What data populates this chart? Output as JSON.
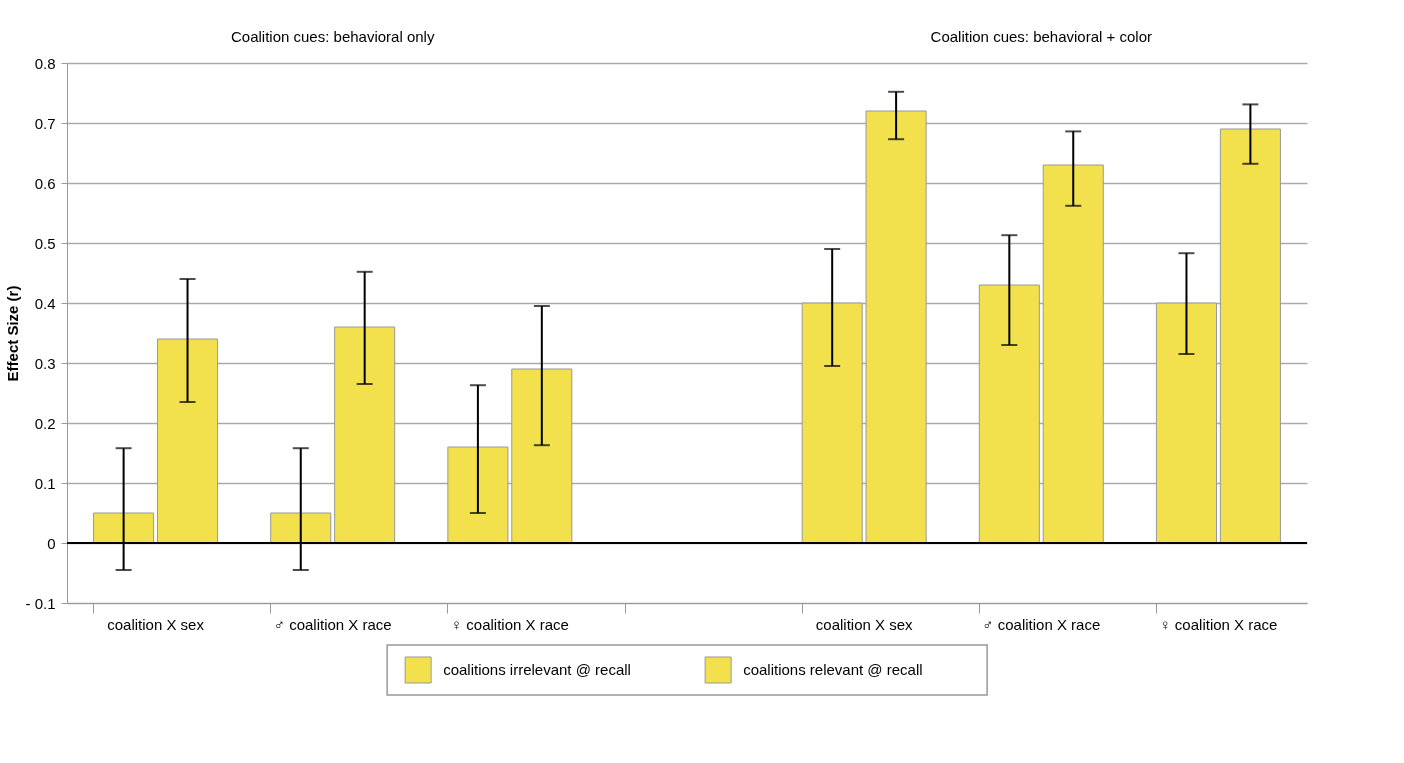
{
  "chart_data": {
    "type": "bar",
    "ylabel": "Effect Size (r)",
    "categories": [
      "coalition X sex",
      "♂ coalition X race",
      "♀ coalition X race",
      null,
      "coalition X sex",
      "♂ coalition X race",
      "♀ coalition X race"
    ],
    "series": [
      {
        "name": "coalitions irrelevant @ recall",
        "color": "#f2e14c",
        "values": [
          0.05,
          0.05,
          0.16,
          null,
          0.4,
          0.43,
          0.4
        ],
        "errors": [
          [
            -0.045,
            0.158
          ],
          [
            -0.045,
            0.158
          ],
          [
            0.05,
            0.263
          ],
          null,
          [
            0.295,
            0.49
          ],
          [
            0.33,
            0.513
          ],
          [
            0.315,
            0.483
          ]
        ]
      },
      {
        "name": "coalitions relevant @ recall",
        "color": "#f2e14c",
        "values": [
          0.34,
          0.36,
          0.29,
          null,
          0.72,
          0.63,
          0.69
        ],
        "errors": [
          [
            0.235,
            0.44
          ],
          [
            0.265,
            0.452
          ],
          [
            0.163,
            0.395
          ],
          null,
          [
            0.673,
            0.752
          ],
          [
            0.562,
            0.686
          ],
          [
            0.632,
            0.731
          ]
        ]
      }
    ],
    "ylim": [
      -0.1,
      0.8
    ],
    "yticks": [
      {
        "value": -0.1,
        "label": "- 0.1"
      },
      0,
      0.1,
      0.2,
      0.3,
      0.4,
      0.5,
      0.6,
      0.7,
      0.8
    ],
    "grid": "y",
    "legend": "bottom",
    "ref_lines": [
      {
        "axis": "y",
        "value": 0,
        "color": "#000000"
      }
    ],
    "annotations": [
      "Coalition cues: behavioral only",
      "Coalition cues: behavioral + color"
    ]
  }
}
